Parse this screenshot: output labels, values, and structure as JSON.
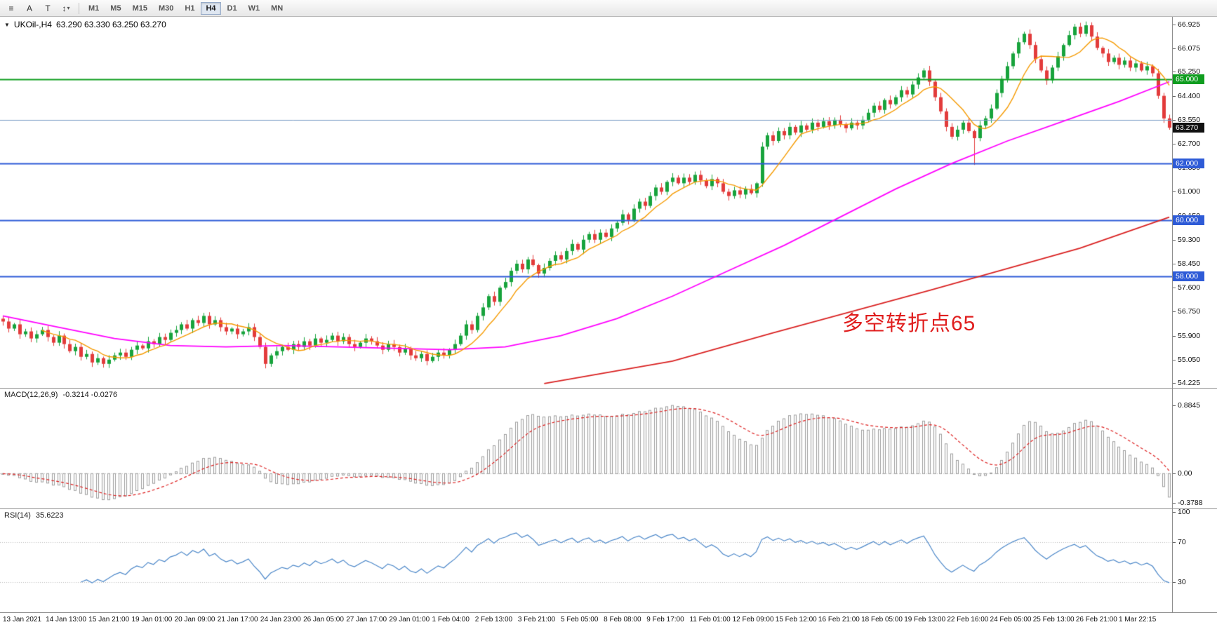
{
  "toolbar": {
    "tools": [
      {
        "name": "chart-window",
        "glyph": "≡",
        "caret": false
      },
      {
        "name": "arrow-style",
        "glyph": "A",
        "caret": false
      },
      {
        "name": "text-label",
        "glyph": "T",
        "caret": false
      },
      {
        "name": "scale-mode",
        "glyph": "↕",
        "caret": true
      }
    ],
    "timeframes": [
      "M1",
      "M5",
      "M15",
      "M30",
      "H1",
      "H4",
      "D1",
      "W1",
      "MN"
    ],
    "active_timeframe": "H4"
  },
  "chart": {
    "collapse_icon": "▼",
    "title": "UKOil-,H4",
    "quote": "63.290 63.330 63.250 63.270",
    "annotation": "多空转折点65",
    "y_range": [
      54.05,
      67.2
    ],
    "price_axis": [
      "66.925",
      "66.075",
      "65.250",
      "64.400",
      "63.550",
      "62.700",
      "61.850",
      "61.000",
      "60.150",
      "59.300",
      "58.450",
      "57.600",
      "56.750",
      "55.900",
      "55.050",
      "54.225"
    ],
    "levels": [
      {
        "value": 65.0,
        "label": "65.000",
        "color": "#0f9d1f",
        "width": 2
      },
      {
        "value": 63.55,
        "label": "",
        "color": "#7f9fc6",
        "width": 1
      },
      {
        "value": 62.0,
        "label": "62.000",
        "color": "#2e5bd7",
        "width": 2
      },
      {
        "value": 60.0,
        "label": "60.000",
        "color": "#2e5bd7",
        "width": 2
      },
      {
        "value": 58.0,
        "label": "58.000",
        "color": "#2e5bd7",
        "width": 2
      }
    ],
    "current_price": {
      "value": 63.27,
      "label": "63.270",
      "color": "#111111"
    }
  },
  "colors": {
    "candle_up": "#17a33c",
    "candle_down": "#e23b3b",
    "ma_fast": "#f59a00",
    "ma_mid": "#ff00ff",
    "ma_slow": "#d92121",
    "macd_hist": "#9c9c9c",
    "macd_signal": "#dd2020",
    "rsi_line": "#4a86c8",
    "dotted_grid": "#b9b9b9"
  },
  "chart_data": {
    "type": "candlestick",
    "symbol": "UKOil-",
    "timeframe": "H4",
    "open_first": 56.5,
    "closes": [
      56.4,
      56.15,
      56.3,
      55.95,
      56.05,
      55.8,
      55.95,
      56.1,
      55.85,
      55.65,
      55.9,
      55.6,
      55.35,
      55.5,
      55.15,
      55.25,
      54.95,
      55.1,
      54.9,
      55.05,
      55.2,
      55.3,
      55.15,
      55.4,
      55.55,
      55.45,
      55.7,
      55.6,
      55.85,
      55.75,
      56.0,
      56.1,
      56.3,
      56.15,
      56.45,
      56.35,
      56.6,
      56.3,
      56.45,
      56.2,
      56.05,
      56.15,
      55.95,
      56.05,
      56.2,
      55.85,
      55.5,
      54.9,
      55.2,
      55.35,
      55.5,
      55.4,
      55.6,
      55.5,
      55.7,
      55.55,
      55.8,
      55.65,
      55.75,
      55.9,
      55.7,
      55.85,
      55.6,
      55.5,
      55.65,
      55.8,
      55.7,
      55.55,
      55.4,
      55.6,
      55.5,
      55.3,
      55.45,
      55.2,
      55.1,
      55.25,
      55.0,
      55.15,
      55.3,
      55.2,
      55.4,
      55.6,
      55.9,
      56.3,
      56.1,
      56.6,
      56.9,
      57.3,
      57.1,
      57.6,
      57.8,
      58.2,
      58.45,
      58.25,
      58.6,
      58.4,
      58.1,
      58.3,
      58.55,
      58.75,
      58.6,
      58.9,
      59.15,
      58.95,
      59.3,
      59.5,
      59.3,
      59.55,
      59.4,
      59.7,
      59.9,
      60.2,
      60.0,
      60.4,
      60.65,
      60.5,
      60.85,
      61.15,
      61.0,
      61.35,
      61.5,
      61.3,
      61.5,
      61.35,
      61.6,
      61.4,
      61.2,
      61.45,
      61.3,
      61.0,
      60.85,
      61.05,
      60.9,
      61.1,
      60.95,
      61.3,
      62.6,
      63.0,
      62.8,
      63.15,
      63.0,
      63.3,
      63.1,
      63.35,
      63.2,
      63.45,
      63.3,
      63.5,
      63.35,
      63.55,
      63.4,
      63.25,
      63.45,
      63.35,
      63.55,
      63.8,
      64.05,
      63.9,
      64.25,
      64.1,
      64.35,
      64.6,
      64.45,
      64.8,
      65.05,
      65.3,
      64.9,
      64.35,
      63.85,
      63.3,
      62.95,
      63.2,
      63.45,
      63.15,
      62.9,
      63.35,
      63.6,
      63.95,
      64.5,
      65.0,
      65.45,
      65.9,
      66.3,
      66.6,
      66.2,
      65.7,
      65.3,
      64.95,
      65.4,
      65.8,
      66.2,
      66.55,
      66.85,
      66.6,
      66.9,
      66.5,
      66.1,
      65.9,
      65.6,
      65.75,
      65.5,
      65.65,
      65.4,
      65.55,
      65.3,
      65.45,
      65.2,
      64.4,
      63.6,
      63.27
    ],
    "wick_low_overrides": {
      "174": 61.95
    },
    "ma_fast_period": 8,
    "ma_mid_points": [
      [
        0,
        56.6
      ],
      [
        10,
        56.2
      ],
      [
        20,
        55.8
      ],
      [
        30,
        55.55
      ],
      [
        40,
        55.5
      ],
      [
        50,
        55.55
      ],
      [
        60,
        55.5
      ],
      [
        70,
        55.45
      ],
      [
        80,
        55.4
      ],
      [
        90,
        55.5
      ],
      [
        100,
        55.9
      ],
      [
        110,
        56.5
      ],
      [
        120,
        57.3
      ],
      [
        130,
        58.2
      ],
      [
        140,
        59.1
      ],
      [
        150,
        60.1
      ],
      [
        160,
        61.1
      ],
      [
        170,
        62.0
      ],
      [
        180,
        62.8
      ],
      [
        190,
        63.5
      ],
      [
        200,
        64.2
      ],
      [
        209,
        64.9
      ]
    ],
    "ma_slow_points": [
      [
        97,
        54.2
      ],
      [
        120,
        55.0
      ],
      [
        138,
        56.0
      ],
      [
        166,
        57.5
      ],
      [
        193,
        59.0
      ],
      [
        209,
        60.1
      ]
    ],
    "macd": {
      "name": "MACD(12,26,9)",
      "values": "-0.3214 -0.0276",
      "fast": 12,
      "slow": 26,
      "signal": 9,
      "range": [
        -0.45,
        1.1
      ],
      "scale": [
        {
          "text": "0.8845",
          "value": 0.8845
        },
        {
          "text": "0.00",
          "value": 0
        },
        {
          "text": "-0.3788",
          "value": -0.3788
        }
      ]
    },
    "rsi": {
      "name": "RSI(14)",
      "value": "35.6223",
      "period": 14,
      "range": [
        0,
        103
      ],
      "levels": [
        70,
        30
      ],
      "scale": [
        {
          "text": "100",
          "value": 100
        },
        {
          "text": "70",
          "value": 70
        },
        {
          "text": "30",
          "value": 30
        }
      ]
    },
    "time_labels": [
      "13 Jan 2021",
      "14 Jan 13:00",
      "15 Jan 21:00",
      "19 Jan 01:00",
      "20 Jan 09:00",
      "21 Jan 17:00",
      "24 Jan 23:00",
      "26 Jan 05:00",
      "27 Jan 17:00",
      "29 Jan 01:00",
      "1 Feb 04:00",
      "2 Feb 13:00",
      "3 Feb 21:00",
      "5 Feb 05:00",
      "8 Feb 08:00",
      "9 Feb 17:00",
      "11 Feb 01:00",
      "12 Feb 09:00",
      "15 Feb 12:00",
      "16 Feb 21:00",
      "18 Feb 05:00",
      "19 Feb 13:00",
      "22 Feb 16:00",
      "24 Feb 05:00",
      "25 Feb 13:00",
      "26 Feb 21:00",
      "1 Mar 22:15"
    ]
  }
}
